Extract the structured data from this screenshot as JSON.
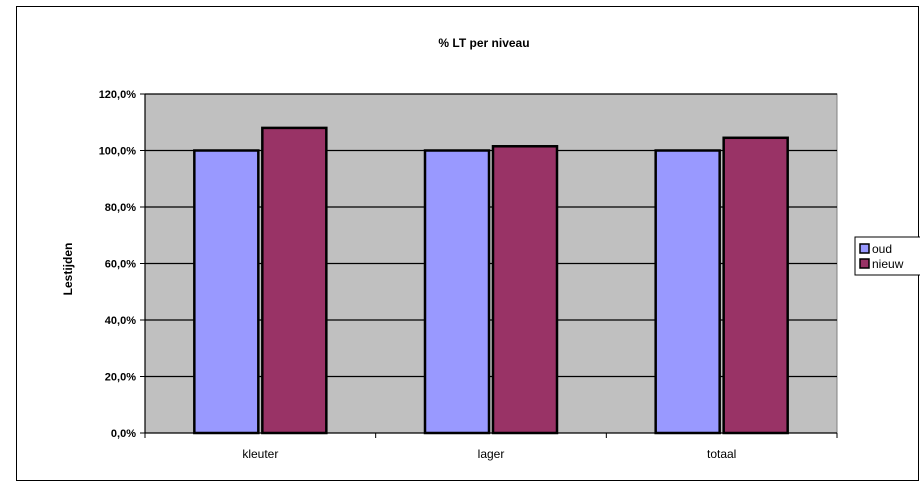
{
  "chart_data": {
    "type": "bar",
    "title": "% LT per niveau",
    "xlabel": "",
    "ylabel": "Lestijden",
    "categories": [
      "kleuter",
      "lager",
      "totaal"
    ],
    "series": [
      {
        "name": "oud",
        "values": [
          100.0,
          100.0,
          100.0
        ],
        "color": "#9999ff"
      },
      {
        "name": "nieuw",
        "values": [
          108.0,
          101.5,
          104.5
        ],
        "color": "#993366"
      }
    ],
    "ylim": [
      0,
      120
    ],
    "yticks": [
      0,
      20,
      40,
      60,
      80,
      100,
      120
    ],
    "ytick_labels": [
      "0,0%",
      "20,0%",
      "40,0%",
      "60,0%",
      "80,0%",
      "100,0%",
      "120,0%"
    ],
    "plot_background": "#c0c0c0",
    "grid": true,
    "legend_position": "right"
  }
}
